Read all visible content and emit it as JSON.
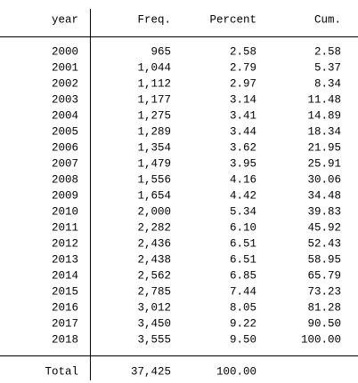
{
  "table": {
    "header": [
      "year",
      "Freq.",
      "Percent",
      "Cum."
    ],
    "rows": [
      [
        "2000",
        "965",
        "2.58",
        "2.58"
      ],
      [
        "2001",
        "1,044",
        "2.79",
        "5.37"
      ],
      [
        "2002",
        "1,112",
        "2.97",
        "8.34"
      ],
      [
        "2003",
        "1,177",
        "3.14",
        "11.48"
      ],
      [
        "2004",
        "1,275",
        "3.41",
        "14.89"
      ],
      [
        "2005",
        "1,289",
        "3.44",
        "18.34"
      ],
      [
        "2006",
        "1,354",
        "3.62",
        "21.95"
      ],
      [
        "2007",
        "1,479",
        "3.95",
        "25.91"
      ],
      [
        "2008",
        "1,556",
        "4.16",
        "30.06"
      ],
      [
        "2009",
        "1,654",
        "4.42",
        "34.48"
      ],
      [
        "2010",
        "2,000",
        "5.34",
        "39.83"
      ],
      [
        "2011",
        "2,282",
        "6.10",
        "45.92"
      ],
      [
        "2012",
        "2,436",
        "6.51",
        "52.43"
      ],
      [
        "2013",
        "2,438",
        "6.51",
        "58.95"
      ],
      [
        "2014",
        "2,562",
        "6.85",
        "65.79"
      ],
      [
        "2015",
        "2,785",
        "7.44",
        "73.23"
      ],
      [
        "2016",
        "3,012",
        "8.05",
        "81.28"
      ],
      [
        "2017",
        "3,450",
        "9.22",
        "90.50"
      ],
      [
        "2018",
        "3,555",
        "9.50",
        "100.00"
      ]
    ],
    "total": [
      "Total",
      "37,425",
      "100.00"
    ]
  }
}
